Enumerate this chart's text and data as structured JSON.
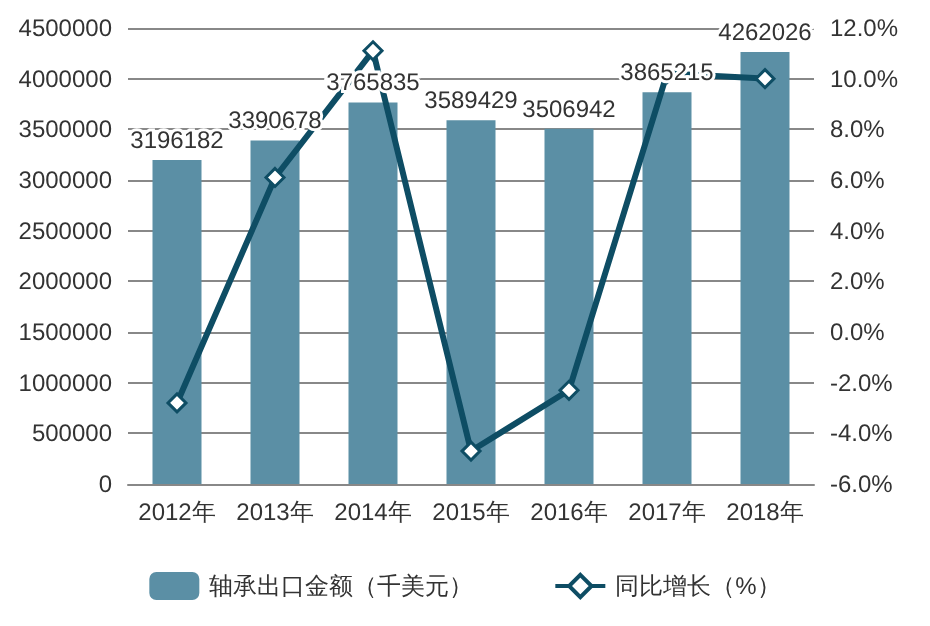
{
  "chart_data": {
    "type": "bar",
    "categories": [
      "2012年",
      "2013年",
      "2014年",
      "2015年",
      "2016年",
      "2017年",
      "2018年"
    ],
    "series": [
      {
        "name": "轴承出口金额（千美元）",
        "color": "#5b8fa5",
        "values": [
          3196182,
          3390678,
          3765835,
          3589429,
          3506942,
          3865215,
          4262026
        ],
        "value_labels": [
          "3196182",
          "3390678",
          "3765835",
          "3589429",
          "3506942",
          "3865215",
          "4262026"
        ]
      },
      {
        "name": "同比增长（%）",
        "type": "line",
        "axis": "y2",
        "color": "#0e4d64",
        "marker": "diamond",
        "values": [
          -2.8,
          6.1,
          11.1,
          -4.7,
          -2.3,
          10.2,
          10.0
        ]
      }
    ],
    "ylim": [
      0,
      4500000
    ],
    "yticks": [
      0,
      500000,
      1000000,
      1500000,
      2000000,
      2500000,
      3000000,
      3500000,
      4000000,
      4500000
    ],
    "y2lim": [
      -6,
      12
    ],
    "y2ticks": [
      {
        "value": -6,
        "label": "-6.0%"
      },
      {
        "value": -4,
        "label": "-4.0%"
      },
      {
        "value": -2,
        "label": "-2.0%"
      },
      {
        "value": 0,
        "label": "0.0%"
      },
      {
        "value": 2,
        "label": "2.0%"
      },
      {
        "value": 4,
        "label": "4.0%"
      },
      {
        "value": 6,
        "label": "6.0%"
      },
      {
        "value": 8,
        "label": "8.0%"
      },
      {
        "value": 10,
        "label": "10.0%"
      },
      {
        "value": 12,
        "label": "12.0%"
      }
    ],
    "grid": "y",
    "legend": "bottom"
  }
}
